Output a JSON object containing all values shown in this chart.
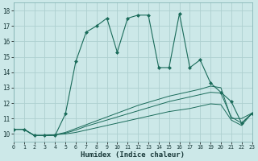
{
  "xlabel": "Humidex (Indice chaleur)",
  "bg_color": "#cce8e8",
  "grid_color": "#aed0d0",
  "line_color": "#1a6b5a",
  "xlim": [
    0,
    23
  ],
  "ylim": [
    9.5,
    18.5
  ],
  "xticks": [
    0,
    1,
    2,
    3,
    4,
    5,
    6,
    7,
    8,
    9,
    10,
    11,
    12,
    13,
    14,
    15,
    16,
    17,
    18,
    19,
    20,
    21,
    22,
    23
  ],
  "yticks": [
    10,
    11,
    12,
    13,
    14,
    15,
    16,
    17,
    18
  ],
  "series_main": [
    10.3,
    10.3,
    9.9,
    9.9,
    9.9,
    11.3,
    14.7,
    16.6,
    17.0,
    17.5,
    15.3,
    17.5,
    17.7,
    17.7,
    14.3,
    14.3,
    17.8,
    14.3,
    14.8,
    13.3,
    12.7,
    12.1,
    10.7,
    11.3
  ],
  "series_line1": [
    10.3,
    10.3,
    9.9,
    9.9,
    9.95,
    10.1,
    10.35,
    10.6,
    10.85,
    11.1,
    11.35,
    11.6,
    11.85,
    12.05,
    12.25,
    12.45,
    12.6,
    12.75,
    12.9,
    13.1,
    13.0,
    11.0,
    11.0,
    11.35
  ],
  "series_line2": [
    10.3,
    10.3,
    9.9,
    9.9,
    9.95,
    10.05,
    10.25,
    10.5,
    10.7,
    10.9,
    11.1,
    11.3,
    11.5,
    11.7,
    11.9,
    12.1,
    12.25,
    12.4,
    12.55,
    12.7,
    12.65,
    11.1,
    10.7,
    11.35
  ],
  "series_line3": [
    10.3,
    10.3,
    9.9,
    9.9,
    9.95,
    10.0,
    10.1,
    10.25,
    10.4,
    10.55,
    10.7,
    10.85,
    11.0,
    11.15,
    11.3,
    11.45,
    11.55,
    11.65,
    11.8,
    11.95,
    11.9,
    10.9,
    10.55,
    11.35
  ]
}
